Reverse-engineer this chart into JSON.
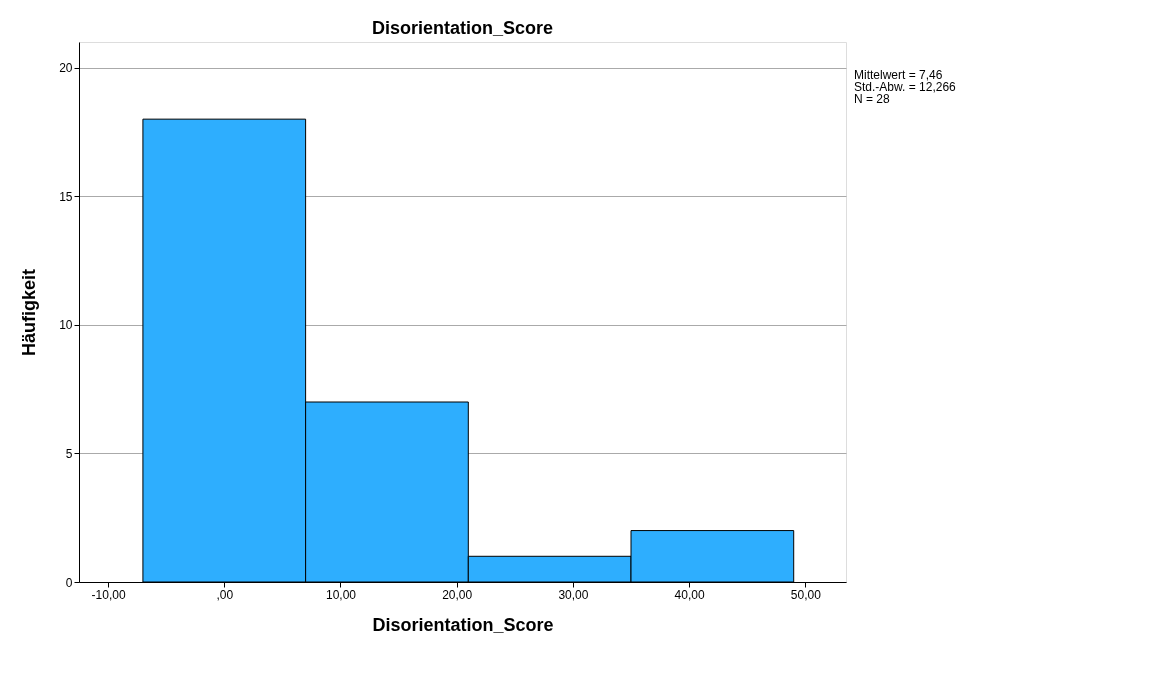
{
  "chart_data": {
    "type": "histogram",
    "title": "Disorientation_Score",
    "xlabel": "Disorientation_Score",
    "ylabel": "Häufigkeit",
    "bins": [
      -7,
      7,
      21,
      35,
      49
    ],
    "values": [
      18,
      7,
      1,
      2
    ],
    "color": "#2eaefe",
    "xlim": [
      -12.5,
      53.5
    ],
    "xticks": [
      {
        "value": -10,
        "label": "-10,00"
      },
      {
        "value": 0,
        "label": ",00"
      },
      {
        "value": 10,
        "label": "10,00"
      },
      {
        "value": 20,
        "label": "20,00"
      },
      {
        "value": 30,
        "label": "30,00"
      },
      {
        "value": 40,
        "label": "40,00"
      },
      {
        "value": 50,
        "label": "50,00"
      }
    ],
    "ylim": [
      0,
      21
    ],
    "yticks": [
      0,
      5,
      10,
      15,
      20
    ],
    "grid": "y",
    "annotations": [
      "Mittelwert = 7,46",
      "Std.-Abw. = 12,266",
      "N = 28"
    ]
  }
}
